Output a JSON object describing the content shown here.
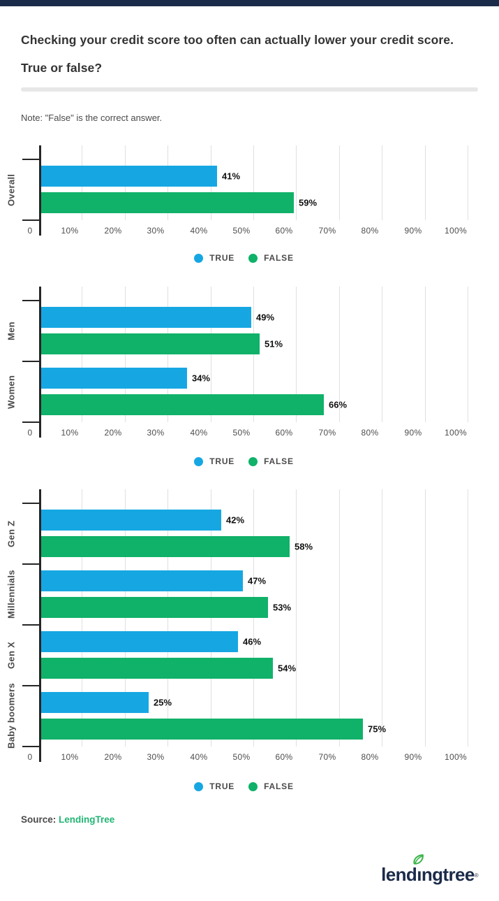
{
  "header": {
    "title_line1": "Checking your credit score too often can actually lower your credit score.",
    "title_line2": "True or false?",
    "note": "Note: \"False\" is the correct answer."
  },
  "legend": {
    "true_label": "TRUE",
    "false_label": "FALSE"
  },
  "footer": {
    "source_label": "Source:",
    "source_link": "LendingTree",
    "logo_text": "lendingtree",
    "registered_mark": "®"
  },
  "colors": {
    "true_blue": "#16A7E3",
    "false_green": "#10B169",
    "navy": "#1B2B4A",
    "leaf_green": "#3BB54A",
    "link_green": "#21B573",
    "axis": "#262626",
    "grid": "#E0E0E0",
    "divider": "#E7E7E7"
  },
  "chart_data": [
    {
      "type": "bar",
      "orientation": "horizontal",
      "title": "",
      "categories": [
        "Overall"
      ],
      "series": [
        {
          "name": "TRUE",
          "color_key": "true_blue",
          "values": [
            41
          ]
        },
        {
          "name": "FALSE",
          "color_key": "false_green",
          "values": [
            59
          ]
        }
      ],
      "xlim": [
        0,
        100
      ],
      "x_ticks": [
        "0",
        "10%",
        "20%",
        "30%",
        "40%",
        "50%",
        "60%",
        "70%",
        "80%",
        "90%",
        "100%"
      ],
      "grid": true,
      "value_labels": [
        "41%",
        "59%"
      ],
      "legend_position": "bottom"
    },
    {
      "type": "bar",
      "orientation": "horizontal",
      "title": "",
      "categories": [
        "Men",
        "Women"
      ],
      "series": [
        {
          "name": "TRUE",
          "color_key": "true_blue",
          "values": [
            49,
            34
          ]
        },
        {
          "name": "FALSE",
          "color_key": "false_green",
          "values": [
            51,
            66
          ]
        }
      ],
      "xlim": [
        0,
        100
      ],
      "x_ticks": [
        "0",
        "10%",
        "20%",
        "30%",
        "40%",
        "50%",
        "60%",
        "70%",
        "80%",
        "90%",
        "100%"
      ],
      "grid": true,
      "value_labels": [
        [
          "49%",
          "34%"
        ],
        [
          "51%",
          "66%"
        ]
      ],
      "legend_position": "bottom"
    },
    {
      "type": "bar",
      "orientation": "horizontal",
      "title": "",
      "categories": [
        "Gen Z",
        "Millennials",
        "Gen X",
        "Baby boomers"
      ],
      "series": [
        {
          "name": "TRUE",
          "color_key": "true_blue",
          "values": [
            42,
            47,
            46,
            25
          ]
        },
        {
          "name": "FALSE",
          "color_key": "false_green",
          "values": [
            58,
            53,
            54,
            75
          ]
        }
      ],
      "xlim": [
        0,
        100
      ],
      "x_ticks": [
        "0",
        "10%",
        "20%",
        "30%",
        "40%",
        "50%",
        "60%",
        "70%",
        "80%",
        "90%",
        "100%"
      ],
      "grid": true,
      "value_labels": [
        [
          "42%",
          "47%",
          "46%",
          "25%"
        ],
        [
          "58%",
          "53%",
          "54%",
          "75%"
        ]
      ],
      "legend_position": "bottom"
    }
  ]
}
